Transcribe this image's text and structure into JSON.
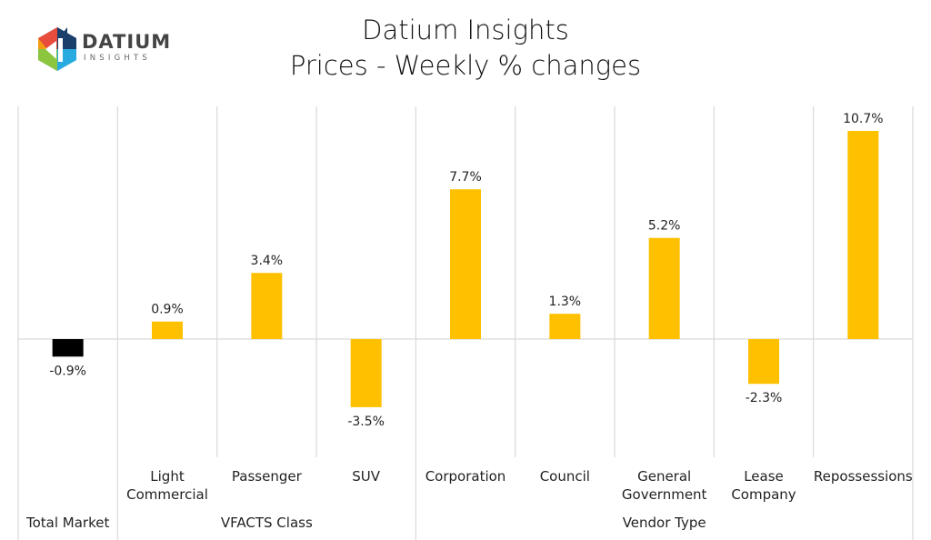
{
  "header": {
    "title_line1": "Datium Insights",
    "title_line2": "Prices - Weekly % changes",
    "logo": {
      "word": "DATIUM",
      "sub": "INSIGHTS"
    }
  },
  "chart_data": {
    "type": "bar",
    "title": "Datium Insights Prices - Weekly % changes",
    "categories": [
      "Total Market",
      "Light Commercial",
      "Passenger",
      "SUV",
      "Corporation",
      "Council",
      "General Government",
      "Lease Company",
      "Repossessions"
    ],
    "category_lines": [
      [
        "Total Market"
      ],
      [
        "Light",
        "Commercial"
      ],
      [
        "Passenger"
      ],
      [
        "SUV"
      ],
      [
        "Corporation"
      ],
      [
        "Council"
      ],
      [
        "General",
        "Government"
      ],
      [
        "Lease",
        "Company"
      ],
      [
        "Repossessions"
      ]
    ],
    "groups": [
      {
        "label": "",
        "members": 1
      },
      {
        "label": "VFACTS Class",
        "members": 3
      },
      {
        "label": "Vendor Type",
        "members": 5
      }
    ],
    "values": [
      -0.9,
      0.9,
      3.4,
      -3.5,
      7.7,
      1.3,
      5.2,
      -2.3,
      10.7
    ],
    "data_labels": [
      "-0.9%",
      "0.9%",
      "3.4%",
      "-3.5%",
      "7.7%",
      "1.3%",
      "5.2%",
      "-2.3%",
      "10.7%"
    ],
    "colors": [
      "#000000",
      "#FFC000",
      "#FFC000",
      "#FFC000",
      "#FFC000",
      "#FFC000",
      "#FFC000",
      "#FFC000",
      "#FFC000"
    ],
    "unit": "%",
    "grid": false,
    "legend": "none"
  }
}
